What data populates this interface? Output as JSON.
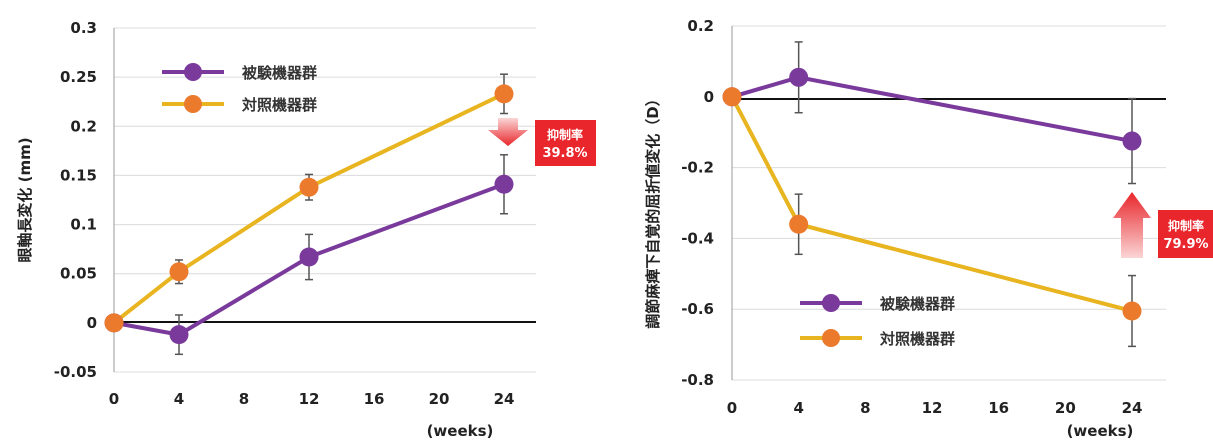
{
  "chart_data": [
    {
      "type": "line",
      "ylabel": "眼軸長変化 (mm)",
      "xlabel": "(weeks)",
      "x": [
        0,
        4,
        12,
        24
      ],
      "x_ticks": [
        "0",
        "4",
        "8",
        "12",
        "16",
        "20",
        "24"
      ],
      "y_ticks": [
        "0.3",
        "0.25",
        "0.2",
        "0.15",
        "0.1",
        "0.05",
        "0",
        "-0.05"
      ],
      "ylim": [
        -0.05,
        0.3
      ],
      "grid": true,
      "legend": "top-left",
      "series": [
        {
          "name": "被験機器群",
          "color": "#7a3a9c",
          "marker": "#7a3a9c",
          "values": [
            0,
            -0.012,
            0.067,
            0.141
          ],
          "err": [
            0,
            0.02,
            0.023,
            0.03
          ]
        },
        {
          "name": "対照機器群",
          "color": "#e8b41f",
          "marker": "#ec7a2c",
          "values": [
            0,
            0.052,
            0.138,
            0.233
          ],
          "err": [
            0,
            0.012,
            0.013,
            0.02
          ]
        }
      ],
      "annotation": {
        "line1": "抑制率",
        "line2": "39.8%",
        "direction": "down",
        "color": "#e8262b"
      }
    },
    {
      "type": "line",
      "ylabel": "調節麻痺下自覚的屈折値変化（D）",
      "xlabel": "(weeks)",
      "x": [
        0,
        4,
        24
      ],
      "x_ticks": [
        "0",
        "4",
        "8",
        "12",
        "16",
        "20",
        "24"
      ],
      "y_ticks": [
        "0.2",
        "0",
        "-0.2",
        "-0.4",
        "-0.6",
        "-0.8"
      ],
      "ylim": [
        -0.8,
        0.2
      ],
      "grid": true,
      "legend": "bottom-left",
      "series": [
        {
          "name": "被験機器群",
          "color": "#7a3a9c",
          "marker": "#7a3a9c",
          "values": [
            0,
            0.055,
            -0.125
          ],
          "err": [
            0,
            0.1,
            0.12
          ]
        },
        {
          "name": "対照機器群",
          "color": "#e8b41f",
          "marker": "#ec7a2c",
          "values": [
            0,
            -0.36,
            -0.605
          ],
          "err": [
            0,
            0.085,
            0.1
          ]
        }
      ],
      "annotation": {
        "line1": "抑制率",
        "line2": "79.9%",
        "direction": "up",
        "color": "#e8262b"
      }
    }
  ]
}
